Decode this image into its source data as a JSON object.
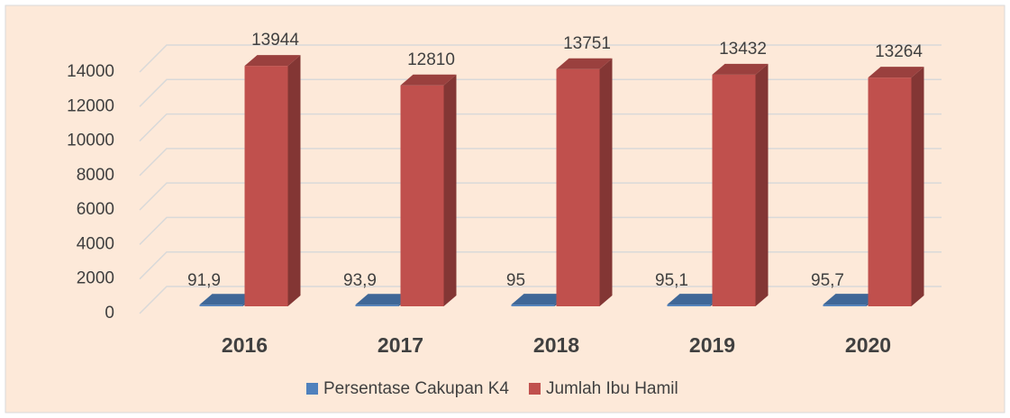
{
  "chart_data": {
    "type": "bar3d",
    "categories": [
      "2016",
      "2017",
      "2018",
      "2019",
      "2020"
    ],
    "series": [
      {
        "name": "Persentase Cakupan K4",
        "color": "#4f81bd",
        "values": [
          91.9,
          93.9,
          95,
          95.1,
          95.7
        ],
        "value_labels": [
          "91,9",
          "93,9",
          "95",
          "95,1",
          "95,7"
        ]
      },
      {
        "name": "Jumlah Ibu Hamil",
        "color": "#c0504d",
        "values": [
          13944,
          12810,
          13751,
          13432,
          13264
        ]
      }
    ],
    "ylim": [
      0,
      14000
    ],
    "yticks": [
      0,
      2000,
      4000,
      6000,
      8000,
      10000,
      12000,
      14000
    ],
    "grid": true,
    "legend": "bottom"
  }
}
